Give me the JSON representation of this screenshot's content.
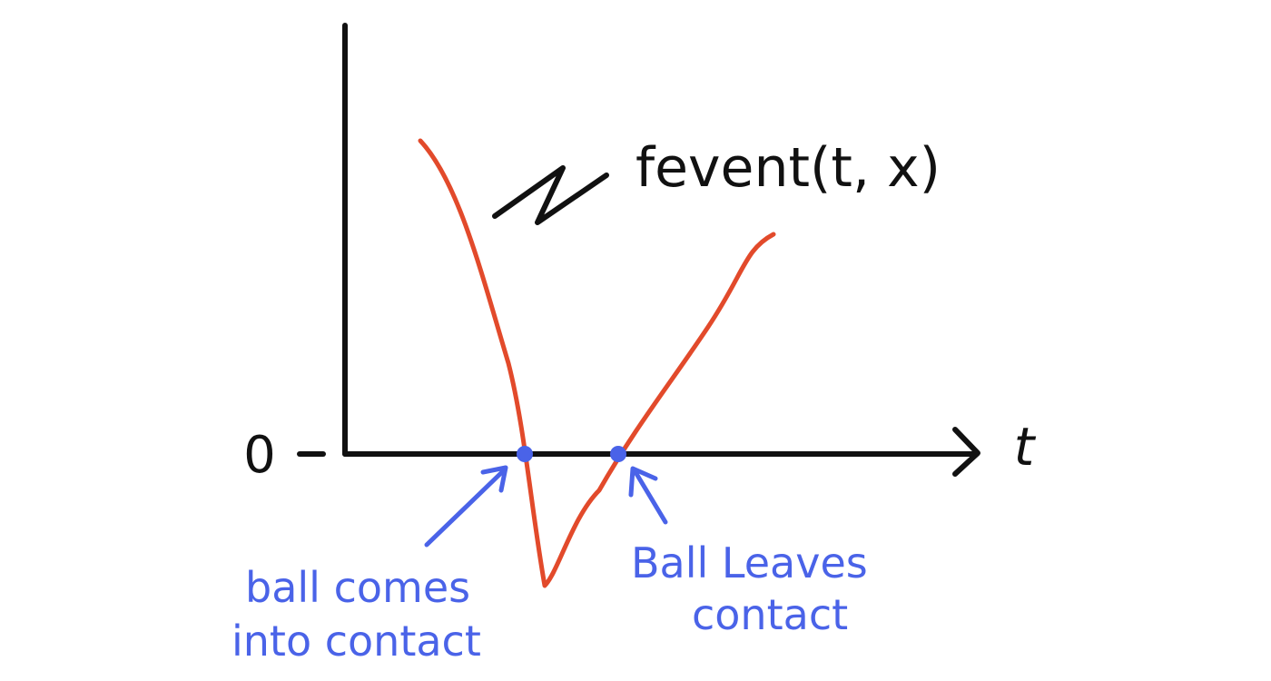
{
  "diagram": {
    "function_label": "fevent(t, x)",
    "x_axis_label": "t",
    "zero_label": "0",
    "annotations": {
      "enter": [
        "ball comes",
        "into contact"
      ],
      "leave": [
        "Ball Leaves",
        "contact"
      ]
    },
    "colors": {
      "axis": "#111111",
      "curve": "#e24a2b",
      "annotation": "#4a63e8"
    }
  }
}
